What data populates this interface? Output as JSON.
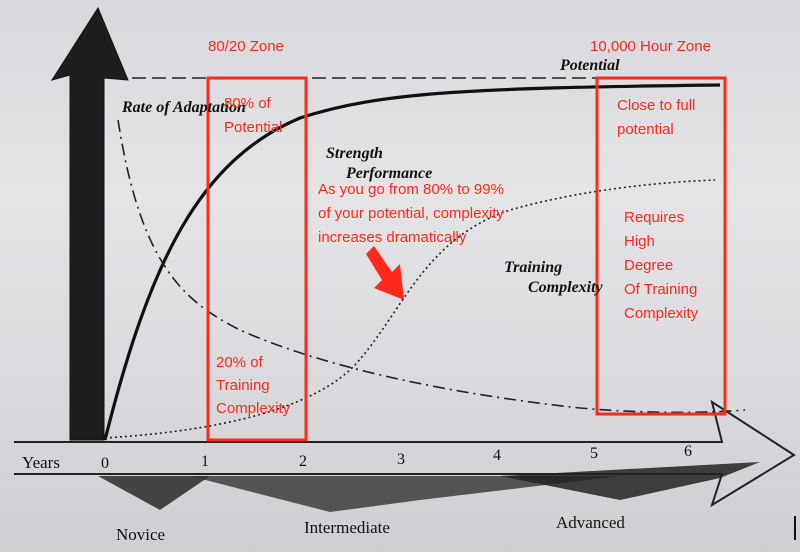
{
  "diagram": {
    "y_axis_label": "Rate of Adaptation",
    "x_axis_label": "Years",
    "x_ticks": [
      "0",
      "1",
      "2",
      "3",
      "4",
      "5",
      "6"
    ],
    "curves": {
      "potential": "Potential",
      "strength": [
        "Strength",
        "Performance"
      ],
      "complexity": [
        "Training",
        "Complexity"
      ]
    },
    "stages": [
      "Novice",
      "Intermediate",
      "Advanced"
    ]
  },
  "annotations": {
    "zone_8020_title": "80/20 Zone",
    "zone_10000_title": "10,000 Hour Zone",
    "eighty_pct": [
      "80% of",
      "Potential"
    ],
    "close_full": [
      "Close to full",
      "potential"
    ],
    "complexity_note": [
      "As you go from 80% to 99%",
      "of your potential, complexity",
      "increases dramatically"
    ],
    "twenty_pct": [
      "20% of",
      "Training",
      "Complexity"
    ],
    "requires": [
      "Requires",
      "High",
      "Degree",
      "Of Training",
      "Complexity"
    ]
  },
  "colors": {
    "highlight": "#ff2a1a",
    "ink": "#111111",
    "paper": "#dcdce0"
  }
}
